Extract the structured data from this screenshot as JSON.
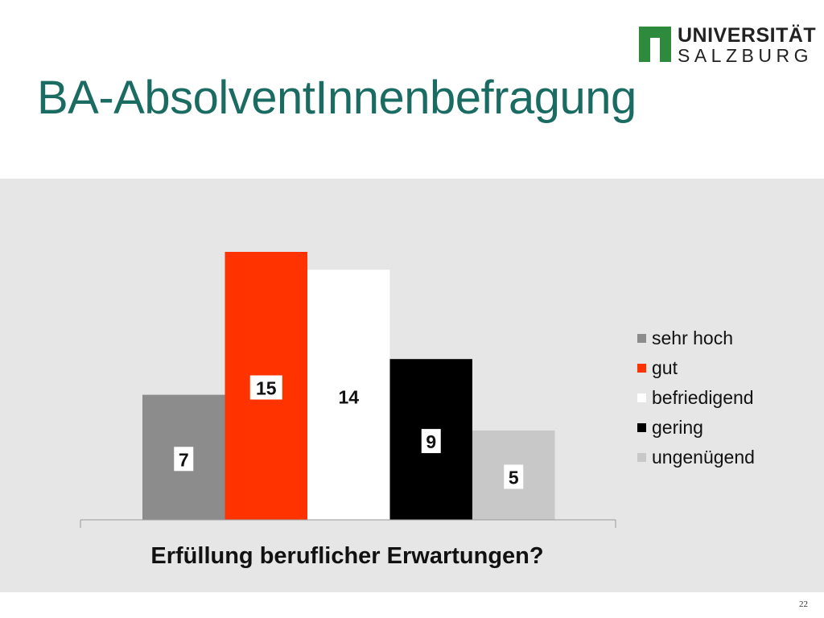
{
  "slide": {
    "title": "BA-AbsolventInnenbefragung",
    "page_number": "22"
  },
  "logo": {
    "line1": "UNIVERSITÄT",
    "line2": "SALZBURG",
    "mark_color": "#2e8b3d"
  },
  "chart_data": {
    "type": "bar",
    "categories": [
      "Erfüllung beruflicher Erwartungen?"
    ],
    "xlabel": "Erfüllung beruflicher Erwartungen?",
    "ylabel": "",
    "ylim": [
      0,
      15
    ],
    "grid": false,
    "legend_position": "right",
    "series": [
      {
        "name": "sehr hoch",
        "values": [
          7
        ],
        "color": "#8c8c8c"
      },
      {
        "name": "gut",
        "values": [
          15
        ],
        "color": "#ff3300"
      },
      {
        "name": "befriedigend",
        "values": [
          14
        ],
        "color": "#ffffff"
      },
      {
        "name": "gering",
        "values": [
          9
        ],
        "color": "#000000"
      },
      {
        "name": "ungenügend",
        "values": [
          5
        ],
        "color": "#c8c8c8"
      }
    ]
  }
}
